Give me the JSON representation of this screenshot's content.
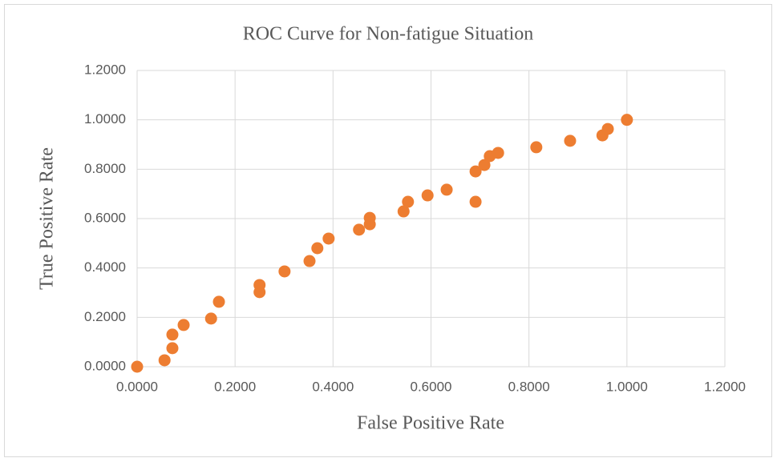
{
  "chart_data": {
    "type": "scatter",
    "title": "ROC Curve for Non-fatigue Situation",
    "x_label": "False Positive Rate",
    "y_label": "True Positive Rate",
    "color": "#ed7d31",
    "grid": true,
    "xlim": [
      0,
      1.2
    ],
    "ylim": [
      0,
      1.2
    ],
    "xticks": [
      {
        "value": 0,
        "label": "0.0000"
      },
      {
        "value": 0.2,
        "label": "0.2000"
      },
      {
        "value": 0.4,
        "label": "0.4000"
      },
      {
        "value": 0.6,
        "label": "0.6000"
      },
      {
        "value": 0.8,
        "label": "0.8000"
      },
      {
        "value": 1,
        "label": "1.0000"
      },
      {
        "value": 1.2,
        "label": "1.2000"
      }
    ],
    "yticks": [
      {
        "value": 0,
        "label": "0.0000"
      },
      {
        "value": 0.2,
        "label": "0.2000"
      },
      {
        "value": 0.4,
        "label": "0.4000"
      },
      {
        "value": 0.6,
        "label": "0.6000"
      },
      {
        "value": 0.8,
        "label": "0.8000"
      },
      {
        "value": 1,
        "label": "1.0000"
      },
      {
        "value": 1.2,
        "label": "1.2000"
      }
    ],
    "x": [
      0,
      0.056,
      0.072,
      0.072,
      0.095,
      0.151,
      0.167,
      0.25,
      0.25,
      0.301,
      0.352,
      0.368,
      0.391,
      0.453,
      0.475,
      0.475,
      0.544,
      0.553,
      0.593,
      0.632,
      0.691,
      0.691,
      0.709,
      0.72,
      0.737,
      0.815,
      0.884,
      0.95,
      0.961,
      1
    ],
    "values": [
      0,
      0.026,
      0.075,
      0.13,
      0.169,
      0.195,
      0.263,
      0.302,
      0.331,
      0.386,
      0.428,
      0.48,
      0.519,
      0.555,
      0.577,
      0.603,
      0.629,
      0.668,
      0.694,
      0.717,
      0.668,
      0.791,
      0.817,
      0.853,
      0.866,
      0.889,
      0.915,
      0.937,
      0.963,
      1
    ]
  }
}
